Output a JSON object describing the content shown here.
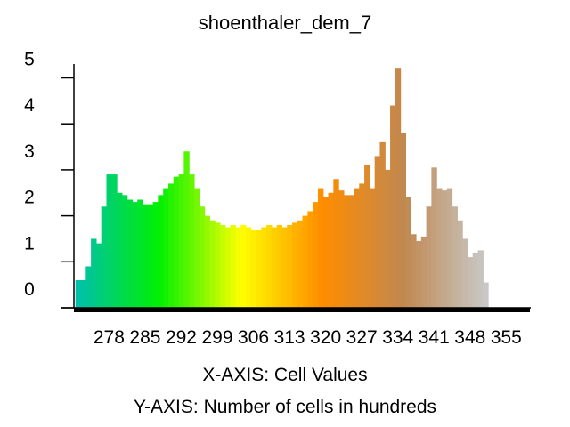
{
  "chart_data": {
    "type": "bar",
    "title": "shoenthaler_dem_7",
    "xlabel": "X-AXIS: Cell Values",
    "ylabel": "Y-AXIS: Number of cells in hundreds",
    "x_tick_labels": [
      "278",
      "285",
      "292",
      "299",
      "306",
      "313",
      "320",
      "327",
      "334",
      "341",
      "348",
      "355"
    ],
    "y_tick_labels": [
      "0",
      "1",
      "2",
      "3",
      "4",
      "5"
    ],
    "xlim": [
      271.2,
      359.6
    ],
    "ylim": [
      0,
      5.3
    ],
    "grid": false,
    "legend": "none",
    "colormap": [
      "#00c0aa",
      "#00f000",
      "#ffff00",
      "#ff8c00",
      "#c08850",
      "#c8c8c8"
    ],
    "profile": [
      [
        272,
        0.6
      ],
      [
        273,
        0.6
      ],
      [
        274,
        0.9
      ],
      [
        275,
        1.5
      ],
      [
        276,
        1.4
      ],
      [
        277,
        2.2
      ],
      [
        278,
        2.9
      ],
      [
        279,
        2.9
      ],
      [
        280,
        2.5
      ],
      [
        281,
        2.45
      ],
      [
        282,
        2.35
      ],
      [
        283,
        2.3
      ],
      [
        284,
        2.35
      ],
      [
        285,
        2.25
      ],
      [
        286,
        2.25
      ],
      [
        287,
        2.3
      ],
      [
        288,
        2.45
      ],
      [
        289,
        2.6
      ],
      [
        290,
        2.7
      ],
      [
        291,
        2.85
      ],
      [
        292,
        2.9
      ],
      [
        293,
        3.4
      ],
      [
        294,
        2.9
      ],
      [
        295,
        2.6
      ],
      [
        296,
        2.2
      ],
      [
        297,
        2.0
      ],
      [
        298,
        1.9
      ],
      [
        299,
        1.85
      ],
      [
        300,
        1.8
      ],
      [
        301,
        1.75
      ],
      [
        302,
        1.8
      ],
      [
        303,
        1.75
      ],
      [
        304,
        1.8
      ],
      [
        305,
        1.75
      ],
      [
        306,
        1.7
      ],
      [
        307,
        1.7
      ],
      [
        308,
        1.75
      ],
      [
        309,
        1.8
      ],
      [
        310,
        1.75
      ],
      [
        311,
        1.8
      ],
      [
        312,
        1.75
      ],
      [
        313,
        1.8
      ],
      [
        314,
        1.85
      ],
      [
        315,
        1.9
      ],
      [
        316,
        2.0
      ],
      [
        317,
        2.1
      ],
      [
        318,
        2.3
      ],
      [
        319,
        2.6
      ],
      [
        320,
        2.4
      ],
      [
        321,
        2.5
      ],
      [
        322,
        2.8
      ],
      [
        323,
        2.55
      ],
      [
        324,
        2.45
      ],
      [
        325,
        2.45
      ],
      [
        326,
        2.6
      ],
      [
        327,
        2.7
      ],
      [
        328,
        3.1
      ],
      [
        329,
        2.6
      ],
      [
        330,
        3.3
      ],
      [
        331,
        3.6
      ],
      [
        332,
        3.0
      ],
      [
        333,
        4.4
      ],
      [
        334,
        5.2
      ],
      [
        335,
        3.8
      ],
      [
        336,
        2.4
      ],
      [
        337,
        1.6
      ],
      [
        338,
        1.45
      ],
      [
        339,
        1.55
      ],
      [
        340,
        2.2
      ],
      [
        341,
        3.05
      ],
      [
        342,
        2.6
      ],
      [
        343,
        2.55
      ],
      [
        344,
        2.6
      ],
      [
        345,
        2.2
      ],
      [
        346,
        1.9
      ],
      [
        347,
        1.5
      ],
      [
        348,
        1.1
      ],
      [
        349,
        1.2
      ],
      [
        350,
        1.25
      ],
      [
        351,
        0.55
      ]
    ]
  }
}
